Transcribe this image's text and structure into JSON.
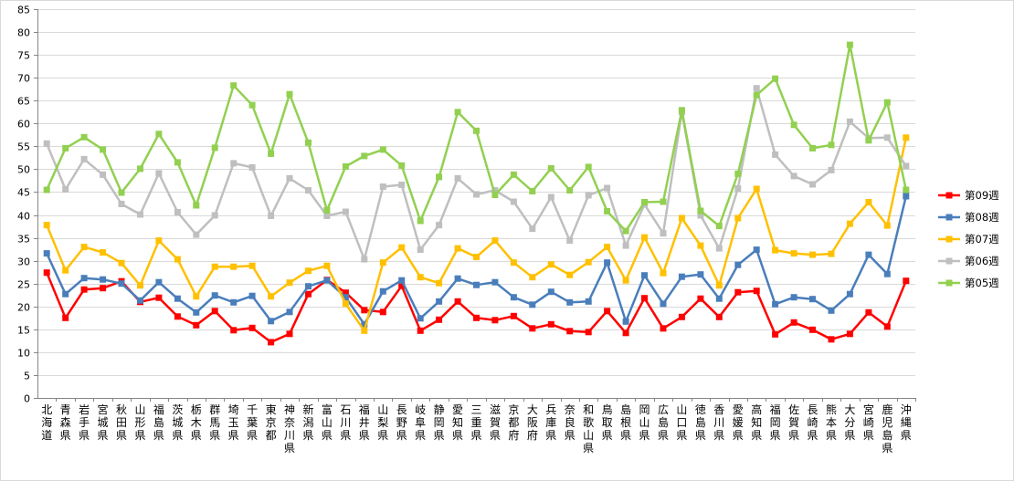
{
  "chart_data": {
    "type": "line",
    "title": "",
    "xlabel": "",
    "ylabel": "",
    "ylim": [
      0,
      85
    ],
    "yticks": [
      0,
      5,
      10,
      15,
      20,
      25,
      30,
      35,
      40,
      45,
      50,
      55,
      60,
      65,
      70,
      75,
      80,
      85
    ],
    "grid": "horizontal",
    "legend_position": "right",
    "categories": [
      "北海道",
      "青森県",
      "岩手県",
      "宮城県",
      "秋田県",
      "山形県",
      "福島県",
      "茨城県",
      "栃木県",
      "群馬県",
      "埼玉県",
      "千葉県",
      "東京都",
      "神奈川県",
      "新潟県",
      "富山県",
      "石川県",
      "福井県",
      "山梨県",
      "長野県",
      "岐阜県",
      "静岡県",
      "愛知県",
      "三重県",
      "滋賀県",
      "京都府",
      "大阪府",
      "兵庫県",
      "奈良県",
      "和歌山県",
      "鳥取県",
      "島根県",
      "岡山県",
      "広島県",
      "山口県",
      "徳島県",
      "香川県",
      "愛媛県",
      "高知県",
      "福岡県",
      "佐賀県",
      "長崎県",
      "熊本県",
      "大分県",
      "宮崎県",
      "鹿児島県",
      "沖縄県"
    ],
    "series": [
      {
        "name": "第09週",
        "color": "#ff0000",
        "marker": "square",
        "values": [
          27.4,
          17.5,
          23.7,
          24.0,
          25.5,
          21.0,
          21.9,
          17.8,
          15.9,
          19.0,
          14.8,
          15.3,
          12.2,
          14.0,
          22.7,
          25.8,
          23.0,
          19.2,
          18.8,
          24.5,
          14.7,
          17.1,
          21.1,
          17.5,
          17.0,
          17.9,
          15.2,
          16.1,
          14.6,
          14.4,
          19.0,
          14.2,
          21.8,
          15.2,
          17.7,
          21.7,
          17.7,
          23.1,
          23.4,
          13.9,
          16.5,
          14.9,
          12.8,
          14.0,
          18.7,
          15.6,
          25.6
        ]
      },
      {
        "name": "第08週",
        "color": "#4a7ebb",
        "marker": "square",
        "values": [
          31.6,
          22.7,
          26.2,
          25.9,
          25.0,
          21.3,
          25.3,
          21.7,
          18.7,
          22.4,
          20.9,
          22.3,
          16.8,
          18.8,
          24.4,
          25.7,
          22.0,
          16.1,
          23.3,
          25.7,
          17.4,
          21.1,
          26.1,
          24.7,
          25.3,
          22.0,
          20.4,
          23.2,
          20.9,
          21.1,
          29.6,
          16.7,
          26.8,
          20.6,
          26.5,
          27.0,
          21.7,
          29.1,
          32.4,
          20.5,
          22.0,
          21.6,
          19.1,
          22.7,
          31.3,
          27.1,
          44.1
        ]
      },
      {
        "name": "第07週",
        "color": "#ffc000",
        "marker": "square",
        "values": [
          37.8,
          27.9,
          33.0,
          31.8,
          29.5,
          24.6,
          34.4,
          30.3,
          22.2,
          28.7,
          28.7,
          28.9,
          22.2,
          25.2,
          27.8,
          28.9,
          20.6,
          14.7,
          29.6,
          32.9,
          26.4,
          25.1,
          32.7,
          30.8,
          34.4,
          29.6,
          26.4,
          29.2,
          26.9,
          29.7,
          33.0,
          25.7,
          35.1,
          27.3,
          39.3,
          33.3,
          24.6,
          39.3,
          45.7,
          32.3,
          31.6,
          31.3,
          31.5,
          38.1,
          42.8,
          37.7,
          56.9
        ]
      },
      {
        "name": "第06週",
        "color": "#bfbfbf",
        "marker": "square",
        "values": [
          55.6,
          45.6,
          52.2,
          48.8,
          42.4,
          40.1,
          49.1,
          40.6,
          35.7,
          39.9,
          51.3,
          50.4,
          39.8,
          48.0,
          45.4,
          39.8,
          40.7,
          30.3,
          46.2,
          46.6,
          32.4,
          37.8,
          48.0,
          44.5,
          45.4,
          42.9,
          37.0,
          43.9,
          34.4,
          44.3,
          45.9,
          33.3,
          42.3,
          36.0,
          62.5,
          39.9,
          32.7,
          45.8,
          67.7,
          53.2,
          48.5,
          46.7,
          49.8,
          60.4,
          56.8,
          56.9,
          50.7
        ]
      },
      {
        "name": "第05週",
        "color": "#92d050",
        "marker": "square",
        "values": [
          45.5,
          54.6,
          57.0,
          54.3,
          44.9,
          50.1,
          57.7,
          51.5,
          42.1,
          54.7,
          68.3,
          64.0,
          53.4,
          66.4,
          55.8,
          41.0,
          50.6,
          52.9,
          54.3,
          50.8,
          38.7,
          48.3,
          62.5,
          58.4,
          44.4,
          48.8,
          45.2,
          50.2,
          45.4,
          50.5,
          40.8,
          36.5,
          42.8,
          42.9,
          62.9,
          40.9,
          37.6,
          49.0,
          66.2,
          69.8,
          59.7,
          54.6,
          55.3,
          77.2,
          56.3,
          64.6,
          45.5
        ]
      }
    ]
  }
}
